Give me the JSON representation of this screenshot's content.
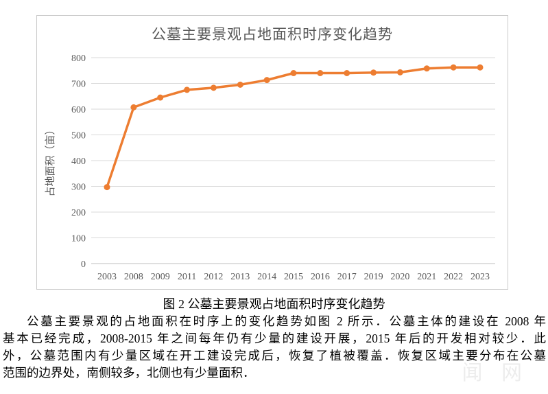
{
  "chart_data": {
    "type": "line",
    "title": "公墓主要景观占地面积时序变化趋势",
    "xlabel": "",
    "ylabel": "占地面积（亩）",
    "categories": [
      "2003",
      "2008",
      "2009",
      "2011",
      "2012",
      "2013",
      "2014",
      "2015",
      "2016",
      "2017",
      "2019",
      "2020",
      "2021",
      "2022",
      "2023"
    ],
    "values": [
      297,
      607,
      645,
      675,
      683,
      695,
      713,
      740,
      740,
      740,
      742,
      743,
      758,
      762,
      762
    ],
    "ylim": [
      0,
      800
    ],
    "yticks": [
      0,
      100,
      200,
      300,
      400,
      500,
      600,
      700,
      800
    ],
    "grid": "horizontal",
    "legend_position": "none",
    "line_color": "#ED7D31",
    "marker": "circle"
  },
  "caption": "图 2  公墓主要景观占地面积时序变化趋势",
  "paragraph": {
    "lines": [
      "公墓主要景观的占地面积在时序上的变化趋势如图 2 所示．公墓主体的建设在 2008 年",
      "基本已经完成，2008-2015 年之间每年仍有少量的建设开展，2015 年后的开发相对较少．此",
      "外，公墓范围内有少量区域在开工建设完成后，恢复了植被覆盖．恢复区域主要分布在公墓",
      "范围的边界处，南侧较多，北侧也有少量面积．"
    ]
  },
  "watermark": "闻 网",
  "colors": {
    "accent": "#ED7D31",
    "grid": "#D9D9D9",
    "baseline": "#BFBFBF",
    "axis_text": "#595959",
    "panel_border": "#C9C9C9"
  }
}
